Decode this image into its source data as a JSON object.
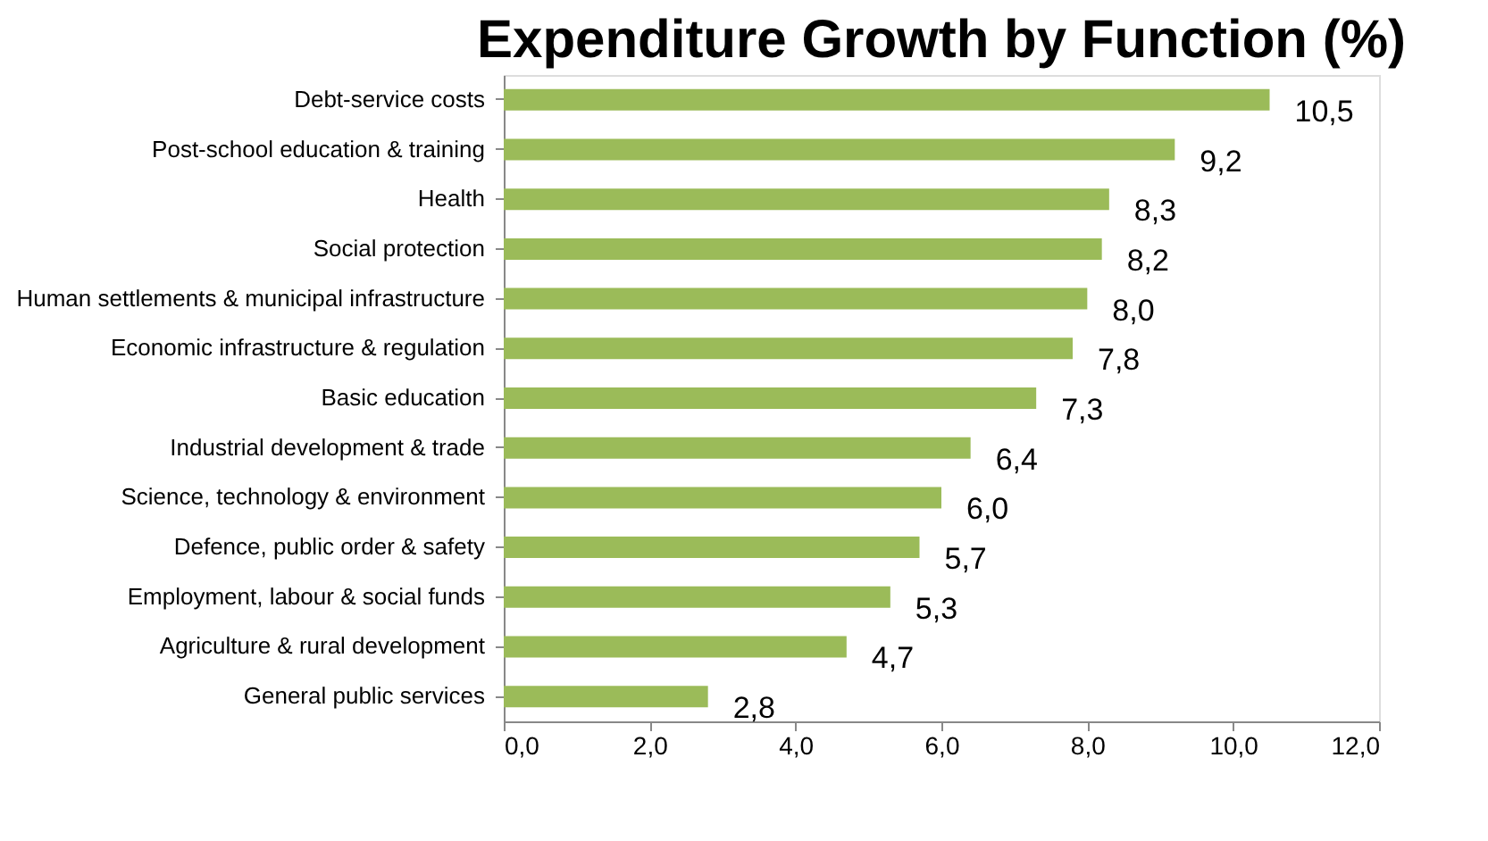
{
  "chart_data": {
    "type": "bar",
    "orientation": "horizontal",
    "title": "Expenditure Growth by Function (%)",
    "categories": [
      "Debt-service costs",
      "Post-school education & training",
      "Health",
      "Social protection",
      "Human settlements & municipal infrastructure",
      "Economic infrastructure & regulation",
      "Basic education",
      "Industrial development & trade",
      "Science, technology & environment",
      "Defence, public order & safety",
      "Employment, labour & social funds",
      "Agriculture & rural development",
      "General public services"
    ],
    "values": [
      10.5,
      9.2,
      8.3,
      8.2,
      8.0,
      7.8,
      7.3,
      6.4,
      6.0,
      5.7,
      5.3,
      4.7,
      2.8
    ],
    "value_labels": [
      "10,5",
      "9,2",
      "8,3",
      "8,2",
      "8,0",
      "7,8",
      "7,3",
      "6,4",
      "6,0",
      "5,7",
      "5,3",
      "4,7",
      "2,8"
    ],
    "color": "#9bbb59",
    "xlim": [
      0,
      12
    ],
    "xticks": [
      {
        "value": 0,
        "label": "0,0"
      },
      {
        "value": 2,
        "label": "2,0"
      },
      {
        "value": 4,
        "label": "4,0"
      },
      {
        "value": 6,
        "label": "6,0"
      },
      {
        "value": 8,
        "label": "8,0"
      },
      {
        "value": 10,
        "label": "10,0"
      },
      {
        "value": 12,
        "label": "12,0"
      }
    ],
    "grid": false
  }
}
